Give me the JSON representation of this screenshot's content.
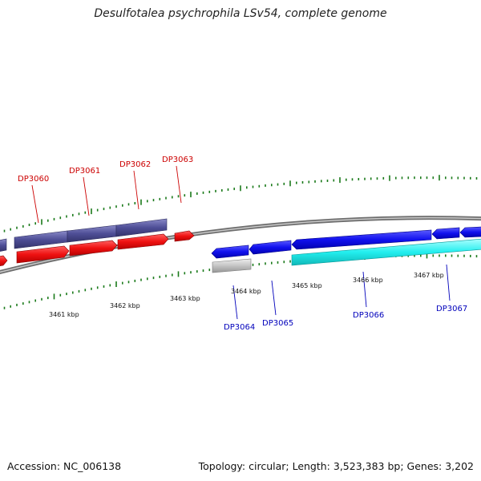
{
  "title": "Desulfotalea psychrophila LSv54, complete genome",
  "footer": {
    "accession": "Accession: NC_006138",
    "summary": "Topology: circular; Length: 3,523,383 bp; Genes: 3,202"
  },
  "scale_labels": [
    "3461 kbp",
    "3462 kbp",
    "3463 kbp",
    "3464 kbp",
    "3465 kbp",
    "3466 kbp",
    "3467 kbp"
  ],
  "gene_labels": {
    "forward": [
      "DP3060",
      "DP3061",
      "DP3062",
      "DP3063"
    ],
    "reverse": [
      "DP3064",
      "DP3065",
      "DP3066",
      "DP3067"
    ]
  },
  "colors": {
    "backbone": "#8a8a8a",
    "tick": "#1a7a1a",
    "forward_label": "#cc0000",
    "reverse_label": "#0000bb",
    "cds_forward": "#ee1111",
    "cds_reverse_blue": "#1111ee",
    "feature_dark": "#4e4e96",
    "feature_cyan": "#22eeee",
    "feature_grey": "#c4c4c4"
  }
}
